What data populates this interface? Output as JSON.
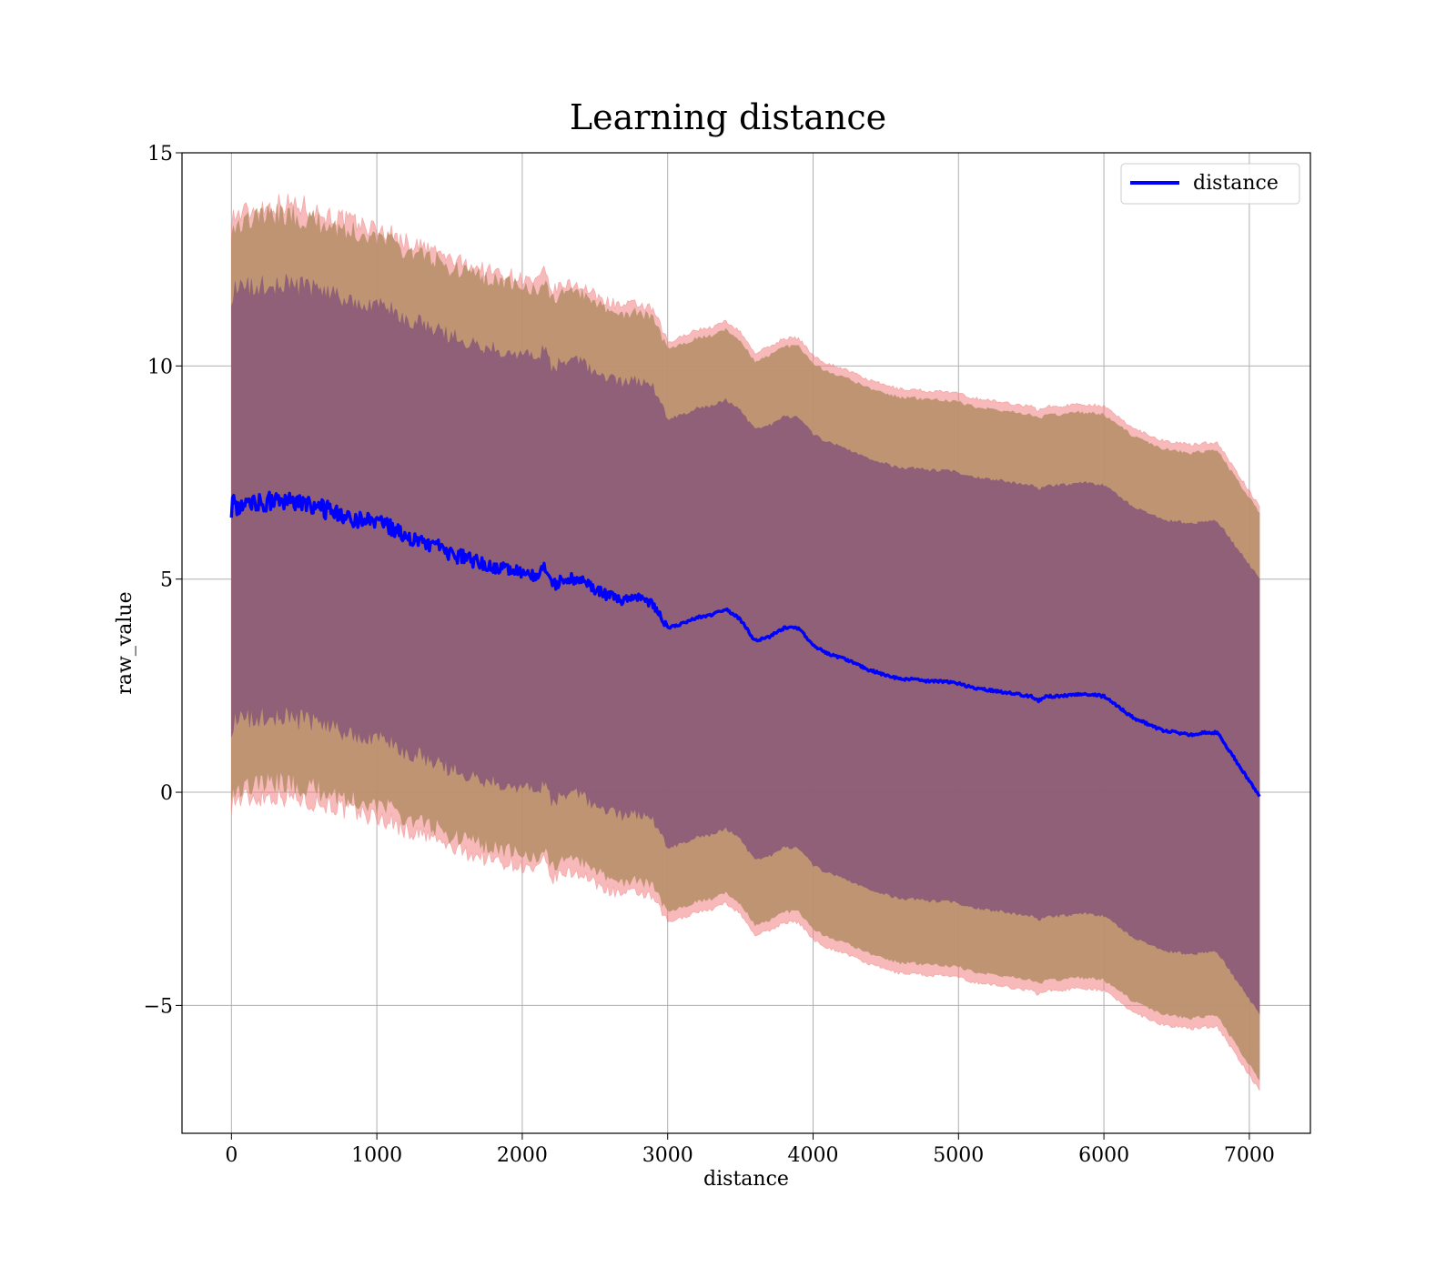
{
  "chart_data": {
    "type": "line",
    "title": "Learning distance",
    "xlabel": "distance",
    "ylabel": "raw_value",
    "xlim": [
      -340,
      7420
    ],
    "ylim": [
      -8.0,
      15.0
    ],
    "xticks": [
      0,
      1000,
      2000,
      3000,
      4000,
      5000,
      6000,
      7000
    ],
    "xtick_labels": [
      "0",
      "1000",
      "2000",
      "3000",
      "4000",
      "5000",
      "6000",
      "7000"
    ],
    "yticks": [
      -5,
      0,
      5,
      10,
      15
    ],
    "ytick_labels": [
      "−5",
      "0",
      "5",
      "10",
      "15"
    ],
    "grid": true,
    "legend": {
      "placement": "upper-right",
      "entries": [
        {
          "label": "distance",
          "color": "#0000ff"
        }
      ]
    },
    "series": [
      {
        "name": "distance",
        "color": "#0000ff",
        "x": [
          0,
          100,
          200,
          300,
          400,
          500,
          600,
          700,
          800,
          900,
          1000,
          1100,
          1200,
          1300,
          1400,
          1500,
          1600,
          1700,
          1800,
          1900,
          2000,
          2100,
          2150,
          2200,
          2300,
          2400,
          2500,
          2600,
          2700,
          2800,
          2900,
          3000,
          3050,
          3100,
          3200,
          3300,
          3400,
          3500,
          3600,
          3700,
          3800,
          3900,
          4000,
          4100,
          4200,
          4300,
          4400,
          4500,
          4600,
          4700,
          4800,
          4900,
          5000,
          5100,
          5200,
          5300,
          5400,
          5500,
          5550,
          5600,
          5700,
          5800,
          5900,
          6000,
          6100,
          6200,
          6300,
          6400,
          6500,
          6600,
          6700,
          6780,
          7070
        ],
        "y": [
          6.7,
          6.75,
          6.8,
          6.85,
          6.8,
          6.75,
          6.65,
          6.6,
          6.45,
          6.4,
          6.3,
          6.2,
          6.0,
          5.9,
          5.8,
          5.6,
          5.5,
          5.4,
          5.3,
          5.25,
          5.15,
          5.05,
          5.3,
          4.85,
          5.0,
          5.0,
          4.75,
          4.6,
          4.5,
          4.55,
          4.4,
          3.85,
          3.9,
          3.95,
          4.1,
          4.15,
          4.3,
          4.05,
          3.55,
          3.65,
          3.85,
          3.85,
          3.45,
          3.25,
          3.15,
          3.0,
          2.85,
          2.75,
          2.65,
          2.65,
          2.6,
          2.6,
          2.55,
          2.45,
          2.4,
          2.35,
          2.3,
          2.25,
          2.15,
          2.25,
          2.25,
          2.3,
          2.3,
          2.25,
          2.0,
          1.75,
          1.6,
          1.45,
          1.4,
          1.35,
          1.4,
          1.4,
          -0.1
        ]
      }
    ],
    "bands": [
      {
        "type": "fill_between",
        "color": "#f08080",
        "x": [
          0,
          100,
          200,
          300,
          400,
          500,
          600,
          700,
          800,
          900,
          1000,
          1100,
          1200,
          1300,
          1400,
          1500,
          1600,
          1700,
          1800,
          1900,
          2000,
          2100,
          2150,
          2200,
          2300,
          2400,
          2500,
          2600,
          2700,
          2800,
          2900,
          3000,
          3050,
          3100,
          3200,
          3300,
          3400,
          3500,
          3600,
          3700,
          3800,
          3900,
          4000,
          4100,
          4200,
          4300,
          4400,
          4500,
          4600,
          4700,
          4800,
          4900,
          5000,
          5100,
          5200,
          5300,
          5400,
          5500,
          5550,
          5600,
          5700,
          5800,
          5900,
          6000,
          6100,
          6200,
          6300,
          6400,
          6500,
          6600,
          6700,
          6780,
          7070
        ],
        "upper": [
          13.5,
          13.6,
          13.7,
          13.8,
          13.8,
          13.75,
          13.6,
          13.5,
          13.4,
          13.3,
          13.2,
          13.1,
          12.9,
          12.8,
          12.7,
          12.5,
          12.4,
          12.3,
          12.2,
          12.15,
          12.05,
          11.95,
          12.2,
          11.75,
          11.9,
          11.9,
          11.65,
          11.5,
          11.4,
          11.45,
          11.3,
          10.55,
          10.6,
          10.7,
          10.85,
          10.9,
          11.05,
          10.8,
          10.3,
          10.45,
          10.65,
          10.65,
          10.25,
          10.05,
          9.95,
          9.8,
          9.65,
          9.55,
          9.45,
          9.45,
          9.4,
          9.4,
          9.35,
          9.25,
          9.2,
          9.15,
          9.1,
          9.05,
          8.95,
          9.05,
          9.05,
          9.1,
          9.1,
          9.05,
          8.8,
          8.55,
          8.4,
          8.25,
          8.2,
          8.15,
          8.2,
          8.2,
          6.7
        ],
        "lower": [
          -0.2,
          -0.15,
          -0.1,
          -0.05,
          -0.1,
          -0.15,
          -0.25,
          -0.3,
          -0.45,
          -0.5,
          -0.6,
          -0.7,
          -0.9,
          -1.0,
          -1.1,
          -1.3,
          -1.4,
          -1.5,
          -1.6,
          -1.65,
          -1.75,
          -1.85,
          -1.6,
          -2.05,
          -1.9,
          -1.9,
          -2.15,
          -2.3,
          -2.4,
          -2.35,
          -2.5,
          -3.05,
          -3.0,
          -2.95,
          -2.8,
          -2.75,
          -2.6,
          -2.85,
          -3.35,
          -3.25,
          -3.05,
          -3.05,
          -3.45,
          -3.65,
          -3.75,
          -3.9,
          -4.05,
          -4.15,
          -4.25,
          -4.25,
          -4.3,
          -4.3,
          -4.35,
          -4.45,
          -4.5,
          -4.55,
          -4.6,
          -4.65,
          -4.75,
          -4.65,
          -4.65,
          -4.6,
          -4.6,
          -4.65,
          -4.9,
          -5.15,
          -5.3,
          -5.45,
          -5.5,
          -5.55,
          -5.5,
          -5.5,
          -7.0
        ]
      },
      {
        "type": "fill_between",
        "color": "#b8906a",
        "x": [
          0,
          100,
          200,
          300,
          400,
          500,
          600,
          700,
          800,
          900,
          1000,
          1100,
          1200,
          1300,
          1400,
          1500,
          1600,
          1700,
          1800,
          1900,
          2000,
          2100,
          2150,
          2200,
          2300,
          2400,
          2500,
          2600,
          2700,
          2800,
          2900,
          3000,
          3050,
          3100,
          3200,
          3300,
          3400,
          3500,
          3600,
          3700,
          3800,
          3900,
          4000,
          4100,
          4200,
          4300,
          4400,
          4500,
          4600,
          4700,
          4800,
          4900,
          5000,
          5100,
          5200,
          5300,
          5400,
          5500,
          5550,
          5600,
          5700,
          5800,
          5900,
          6000,
          6100,
          6200,
          6300,
          6400,
          6500,
          6600,
          6700,
          6780,
          7070
        ],
        "upper": [
          13.3,
          13.4,
          13.5,
          13.55,
          13.5,
          13.45,
          13.35,
          13.3,
          13.15,
          13.1,
          13.0,
          12.9,
          12.7,
          12.6,
          12.5,
          12.3,
          12.2,
          12.1,
          12.0,
          11.95,
          11.85,
          11.75,
          12.0,
          11.55,
          11.7,
          11.7,
          11.45,
          11.3,
          11.2,
          11.25,
          11.1,
          10.4,
          10.45,
          10.5,
          10.65,
          10.7,
          10.85,
          10.6,
          10.1,
          10.25,
          10.45,
          10.45,
          10.05,
          9.85,
          9.75,
          9.6,
          9.45,
          9.35,
          9.25,
          9.25,
          9.2,
          9.2,
          9.15,
          9.05,
          9.0,
          8.95,
          8.9,
          8.85,
          8.75,
          8.85,
          8.85,
          8.9,
          8.9,
          8.85,
          8.6,
          8.35,
          8.2,
          8.05,
          8.0,
          7.95,
          8.0,
          8.0,
          6.55
        ],
        "lower": [
          0.1,
          0.15,
          0.2,
          0.25,
          0.2,
          0.15,
          0.05,
          0.0,
          -0.15,
          -0.2,
          -0.3,
          -0.4,
          -0.6,
          -0.7,
          -0.8,
          -1.0,
          -1.1,
          -1.2,
          -1.3,
          -1.35,
          -1.45,
          -1.55,
          -1.3,
          -1.75,
          -1.6,
          -1.6,
          -1.85,
          -2.0,
          -2.1,
          -2.05,
          -2.2,
          -2.8,
          -2.75,
          -2.7,
          -2.55,
          -2.5,
          -2.35,
          -2.6,
          -3.1,
          -3.0,
          -2.8,
          -2.8,
          -3.2,
          -3.4,
          -3.5,
          -3.65,
          -3.8,
          -3.9,
          -4.0,
          -4.0,
          -4.05,
          -4.05,
          -4.1,
          -4.2,
          -4.25,
          -4.3,
          -4.35,
          -4.4,
          -4.5,
          -4.4,
          -4.4,
          -4.35,
          -4.35,
          -4.4,
          -4.65,
          -4.9,
          -5.05,
          -5.2,
          -5.25,
          -5.3,
          -5.25,
          -5.25,
          -6.75
        ]
      },
      {
        "type": "fill_between",
        "color": "#8a5a78",
        "x": [
          0,
          100,
          200,
          300,
          400,
          500,
          600,
          700,
          800,
          900,
          1000,
          1100,
          1200,
          1300,
          1400,
          1500,
          1600,
          1700,
          1800,
          1900,
          2000,
          2100,
          2150,
          2200,
          2300,
          2400,
          2500,
          2600,
          2700,
          2800,
          2900,
          3000,
          3050,
          3100,
          3200,
          3300,
          3400,
          3500,
          3600,
          3700,
          3800,
          3900,
          4000,
          4100,
          4200,
          4300,
          4400,
          4500,
          4600,
          4700,
          4800,
          4900,
          5000,
          5100,
          5200,
          5300,
          5400,
          5500,
          5550,
          5600,
          5700,
          5800,
          5900,
          6000,
          6100,
          6200,
          6300,
          6400,
          6500,
          6600,
          6700,
          6780,
          7070
        ],
        "upper": [
          11.7,
          11.8,
          11.85,
          11.9,
          11.9,
          11.85,
          11.75,
          11.7,
          11.55,
          11.5,
          11.4,
          11.3,
          11.1,
          11.0,
          10.9,
          10.7,
          10.6,
          10.5,
          10.4,
          10.35,
          10.25,
          10.15,
          10.4,
          9.95,
          10.1,
          10.1,
          9.85,
          9.7,
          9.6,
          9.65,
          9.5,
          8.75,
          8.8,
          8.85,
          9.0,
          9.05,
          9.2,
          8.95,
          8.5,
          8.6,
          8.8,
          8.8,
          8.4,
          8.2,
          8.1,
          7.95,
          7.8,
          7.7,
          7.6,
          7.6,
          7.55,
          7.55,
          7.5,
          7.4,
          7.35,
          7.3,
          7.25,
          7.2,
          7.1,
          7.2,
          7.2,
          7.25,
          7.25,
          7.2,
          6.95,
          6.7,
          6.55,
          6.4,
          6.35,
          6.3,
          6.35,
          6.35,
          5.0
        ],
        "lower": [
          1.6,
          1.7,
          1.75,
          1.8,
          1.75,
          1.7,
          1.6,
          1.55,
          1.4,
          1.35,
          1.25,
          1.15,
          0.95,
          0.85,
          0.75,
          0.55,
          0.45,
          0.35,
          0.25,
          0.2,
          0.1,
          0.0,
          0.2,
          -0.2,
          -0.05,
          -0.05,
          -0.3,
          -0.45,
          -0.55,
          -0.5,
          -0.65,
          -1.3,
          -1.25,
          -1.2,
          -1.05,
          -1.0,
          -0.85,
          -1.1,
          -1.6,
          -1.5,
          -1.3,
          -1.3,
          -1.7,
          -1.9,
          -2.0,
          -2.15,
          -2.3,
          -2.4,
          -2.5,
          -2.5,
          -2.55,
          -2.55,
          -2.6,
          -2.7,
          -2.75,
          -2.8,
          -2.85,
          -2.9,
          -3.0,
          -2.9,
          -2.9,
          -2.85,
          -2.85,
          -2.9,
          -3.15,
          -3.4,
          -3.55,
          -3.7,
          -3.75,
          -3.8,
          -3.75,
          -3.75,
          -5.2
        ]
      }
    ]
  }
}
